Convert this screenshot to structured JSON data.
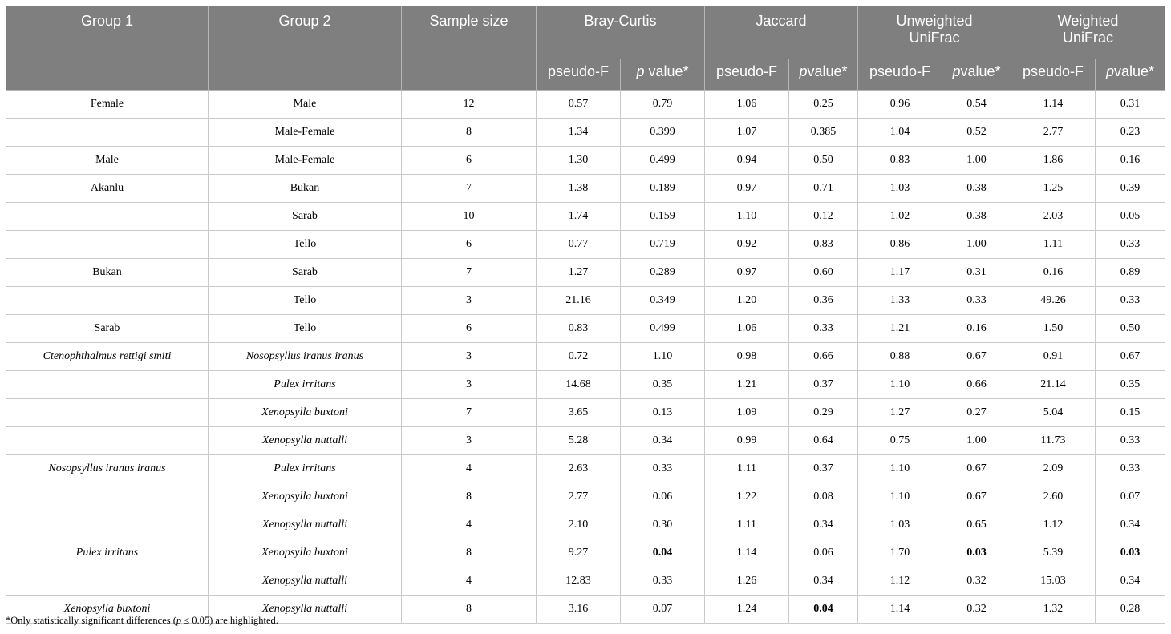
{
  "headers": {
    "group1": "Group 1",
    "group2": "Group 2",
    "sample_size": "Sample size",
    "bray_curtis": "Bray-Curtis",
    "jaccard": "Jaccard",
    "unweighted_unifrac_line1": "Unweighted",
    "unweighted_unifrac_line2": "UniFrac",
    "weighted_unifrac_line1": "Weighted",
    "weighted_unifrac_line2": "UniFrac",
    "pseudo_f": "pseudo-F",
    "p_italic": "p",
    "p_value_suffix_spaced": " value*",
    "p_value_suffix": "value*"
  },
  "rows": [
    {
      "g1": "Female",
      "g1_italic": false,
      "g2": "Male",
      "g2_italic": false,
      "n": "12",
      "bc_f": "0.57",
      "bc_p": "0.79",
      "bc_p_bold": false,
      "j_f": "1.06",
      "j_p": "0.25",
      "j_p_bold": false,
      "uu_f": "0.96",
      "uu_p": "0.54",
      "uu_p_bold": false,
      "wu_f": "1.14",
      "wu_p": "0.31",
      "wu_p_bold": false
    },
    {
      "g1": "",
      "g1_italic": false,
      "g2": "Male-Female",
      "g2_italic": false,
      "n": "8",
      "bc_f": "1.34",
      "bc_p": "0.399",
      "bc_p_bold": false,
      "j_f": "1.07",
      "j_p": "0.385",
      "j_p_bold": false,
      "uu_f": "1.04",
      "uu_p": "0.52",
      "uu_p_bold": false,
      "wu_f": "2.77",
      "wu_p": "0.23",
      "wu_p_bold": false
    },
    {
      "g1": "Male",
      "g1_italic": false,
      "g2": "Male-Female",
      "g2_italic": false,
      "n": "6",
      "bc_f": "1.30",
      "bc_p": "0.499",
      "bc_p_bold": false,
      "j_f": "0.94",
      "j_p": "0.50",
      "j_p_bold": false,
      "uu_f": "0.83",
      "uu_p": "1.00",
      "uu_p_bold": false,
      "wu_f": "1.86",
      "wu_p": "0.16",
      "wu_p_bold": false
    },
    {
      "g1": "Akanlu",
      "g1_italic": false,
      "g2": "Bukan",
      "g2_italic": false,
      "n": "7",
      "bc_f": "1.38",
      "bc_p": "0.189",
      "bc_p_bold": false,
      "j_f": "0.97",
      "j_p": "0.71",
      "j_p_bold": false,
      "uu_f": "1.03",
      "uu_p": "0.38",
      "uu_p_bold": false,
      "wu_f": "1.25",
      "wu_p": "0.39",
      "wu_p_bold": false
    },
    {
      "g1": "",
      "g1_italic": false,
      "g2": "Sarab",
      "g2_italic": false,
      "n": "10",
      "bc_f": "1.74",
      "bc_p": "0.159",
      "bc_p_bold": false,
      "j_f": "1.10",
      "j_p": "0.12",
      "j_p_bold": false,
      "uu_f": "1.02",
      "uu_p": "0.38",
      "uu_p_bold": false,
      "wu_f": "2.03",
      "wu_p": "0.05",
      "wu_p_bold": false
    },
    {
      "g1": "",
      "g1_italic": false,
      "g2": "Tello",
      "g2_italic": false,
      "n": "6",
      "bc_f": "0.77",
      "bc_p": "0.719",
      "bc_p_bold": false,
      "j_f": "0.92",
      "j_p": "0.83",
      "j_p_bold": false,
      "uu_f": "0.86",
      "uu_p": "1.00",
      "uu_p_bold": false,
      "wu_f": "1.11",
      "wu_p": "0.33",
      "wu_p_bold": false
    },
    {
      "g1": "Bukan",
      "g1_italic": false,
      "g2": "Sarab",
      "g2_italic": false,
      "n": "7",
      "bc_f": "1.27",
      "bc_p": "0.289",
      "bc_p_bold": false,
      "j_f": "0.97",
      "j_p": "0.60",
      "j_p_bold": false,
      "uu_f": "1.17",
      "uu_p": "0.31",
      "uu_p_bold": false,
      "wu_f": "0.16",
      "wu_p": "0.89",
      "wu_p_bold": false
    },
    {
      "g1": "",
      "g1_italic": false,
      "g2": "Tello",
      "g2_italic": false,
      "n": "3",
      "bc_f": "21.16",
      "bc_p": "0.349",
      "bc_p_bold": false,
      "j_f": "1.20",
      "j_p": "0.36",
      "j_p_bold": false,
      "uu_f": "1.33",
      "uu_p": "0.33",
      "uu_p_bold": false,
      "wu_f": "49.26",
      "wu_p": "0.33",
      "wu_p_bold": false
    },
    {
      "g1": "Sarab",
      "g1_italic": false,
      "g2": "Tello",
      "g2_italic": false,
      "n": "6",
      "bc_f": "0.83",
      "bc_p": "0.499",
      "bc_p_bold": false,
      "j_f": "1.06",
      "j_p": "0.33",
      "j_p_bold": false,
      "uu_f": "1.21",
      "uu_p": "0.16",
      "uu_p_bold": false,
      "wu_f": "1.50",
      "wu_p": "0.50",
      "wu_p_bold": false
    },
    {
      "g1": "Ctenophthalmus rettigi smiti",
      "g1_italic": true,
      "g2": "Nosopsyllus iranus iranus",
      "g2_italic": true,
      "n": "3",
      "bc_f": "0.72",
      "bc_p": "1.10",
      "bc_p_bold": false,
      "j_f": "0.98",
      "j_p": "0.66",
      "j_p_bold": false,
      "uu_f": "0.88",
      "uu_p": "0.67",
      "uu_p_bold": false,
      "wu_f": "0.91",
      "wu_p": "0.67",
      "wu_p_bold": false
    },
    {
      "g1": "",
      "g1_italic": false,
      "g2": "Pulex irritans",
      "g2_italic": true,
      "n": "3",
      "bc_f": "14.68",
      "bc_p": "0.35",
      "bc_p_bold": false,
      "j_f": "1.21",
      "j_p": "0.37",
      "j_p_bold": false,
      "uu_f": "1.10",
      "uu_p": "0.66",
      "uu_p_bold": false,
      "wu_f": "21.14",
      "wu_p": "0.35",
      "wu_p_bold": false
    },
    {
      "g1": "",
      "g1_italic": false,
      "g2": "Xenopsylla buxtoni",
      "g2_italic": true,
      "n": "7",
      "bc_f": "3.65",
      "bc_p": "0.13",
      "bc_p_bold": false,
      "j_f": "1.09",
      "j_p": "0.29",
      "j_p_bold": false,
      "uu_f": "1.27",
      "uu_p": "0.27",
      "uu_p_bold": false,
      "wu_f": "5.04",
      "wu_p": "0.15",
      "wu_p_bold": false
    },
    {
      "g1": "",
      "g1_italic": false,
      "g2": "Xenopsylla nuttalli",
      "g2_italic": true,
      "n": "3",
      "bc_f": "5.28",
      "bc_p": "0.34",
      "bc_p_bold": false,
      "j_f": "0.99",
      "j_p": "0.64",
      "j_p_bold": false,
      "uu_f": "0.75",
      "uu_p": "1.00",
      "uu_p_bold": false,
      "wu_f": "11.73",
      "wu_p": "0.33",
      "wu_p_bold": false
    },
    {
      "g1": "Nosopsyllus iranus iranus",
      "g1_italic": true,
      "g2": "Pulex irritans",
      "g2_italic": true,
      "n": "4",
      "bc_f": "2.63",
      "bc_p": "0.33",
      "bc_p_bold": false,
      "j_f": "1.11",
      "j_p": "0.37",
      "j_p_bold": false,
      "uu_f": "1.10",
      "uu_p": "0.67",
      "uu_p_bold": false,
      "wu_f": "2.09",
      "wu_p": "0.33",
      "wu_p_bold": false
    },
    {
      "g1": "",
      "g1_italic": false,
      "g2": "Xenopsylla buxtoni",
      "g2_italic": true,
      "n": "8",
      "bc_f": "2.77",
      "bc_p": "0.06",
      "bc_p_bold": false,
      "j_f": "1.22",
      "j_p": "0.08",
      "j_p_bold": false,
      "uu_f": "1.10",
      "uu_p": "0.67",
      "uu_p_bold": false,
      "wu_f": "2.60",
      "wu_p": "0.07",
      "wu_p_bold": false
    },
    {
      "g1": "",
      "g1_italic": false,
      "g2": "Xenopsylla nuttalli",
      "g2_italic": true,
      "n": "4",
      "bc_f": "2.10",
      "bc_p": "0.30",
      "bc_p_bold": false,
      "j_f": "1.11",
      "j_p": "0.34",
      "j_p_bold": false,
      "uu_f": "1.03",
      "uu_p": "0.65",
      "uu_p_bold": false,
      "wu_f": "1.12",
      "wu_p": "0.34",
      "wu_p_bold": false
    },
    {
      "g1": "Pulex irritans",
      "g1_italic": true,
      "g2": "Xenopsylla buxtoni",
      "g2_italic": true,
      "n": "8",
      "bc_f": "9.27",
      "bc_p": "0.04",
      "bc_p_bold": true,
      "j_f": "1.14",
      "j_p": "0.06",
      "j_p_bold": false,
      "uu_f": "1.70",
      "uu_p": "0.03",
      "uu_p_bold": true,
      "wu_f": "5.39",
      "wu_p": "0.03",
      "wu_p_bold": true
    },
    {
      "g1": "",
      "g1_italic": false,
      "g2": "Xenopsylla nuttalli",
      "g2_italic": true,
      "n": "4",
      "bc_f": "12.83",
      "bc_p": "0.33",
      "bc_p_bold": false,
      "j_f": "1.26",
      "j_p": "0.34",
      "j_p_bold": false,
      "uu_f": "1.12",
      "uu_p": "0.32",
      "uu_p_bold": false,
      "wu_f": "15.03",
      "wu_p": "0.34",
      "wu_p_bold": false
    },
    {
      "g1": "Xenopsylla buxtoni",
      "g1_italic": true,
      "g2": "Xenopsylla nuttalli",
      "g2_italic": true,
      "n": "8",
      "bc_f": "3.16",
      "bc_p": "0.07",
      "bc_p_bold": false,
      "j_f": "1.24",
      "j_p": "0.04",
      "j_p_bold": true,
      "uu_f": "1.14",
      "uu_p": "0.32",
      "uu_p_bold": false,
      "wu_f": "1.32",
      "wu_p": "0.28",
      "wu_p_bold": false
    }
  ],
  "footnote": {
    "prefix": "*Only statistically significant differences (",
    "p_italic": "p",
    "suffix": " ≤ 0.05) are highlighted."
  }
}
